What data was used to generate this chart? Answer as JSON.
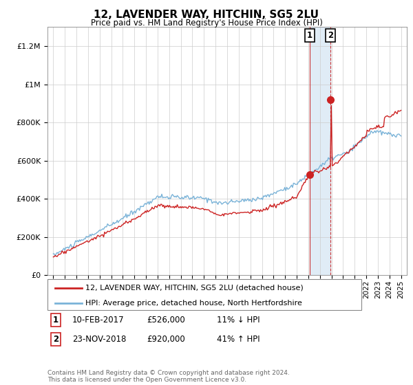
{
  "title": "12, LAVENDER WAY, HITCHIN, SG5 2LU",
  "subtitle": "Price paid vs. HM Land Registry's House Price Index (HPI)",
  "legend_line1": "12, LAVENDER WAY, HITCHIN, SG5 2LU (detached house)",
  "legend_line2": "HPI: Average price, detached house, North Hertfordshire",
  "transaction1_date": "10-FEB-2017",
  "transaction1_price": "£526,000",
  "transaction1_hpi": "11% ↓ HPI",
  "transaction2_date": "23-NOV-2018",
  "transaction2_price": "£920,000",
  "transaction2_hpi": "41% ↑ HPI",
  "footer": "Contains HM Land Registry data © Crown copyright and database right 2024.\nThis data is licensed under the Open Government Licence v3.0.",
  "hpi_color": "#7ab3d8",
  "price_color": "#cc2222",
  "marker1_date": 2017.1,
  "marker1_price": 526000,
  "marker2_date": 2018.9,
  "marker2_price": 920000,
  "ylim_min": 0,
  "ylim_max": 1300000,
  "xlim_min": 1994.5,
  "xlim_max": 2025.5
}
